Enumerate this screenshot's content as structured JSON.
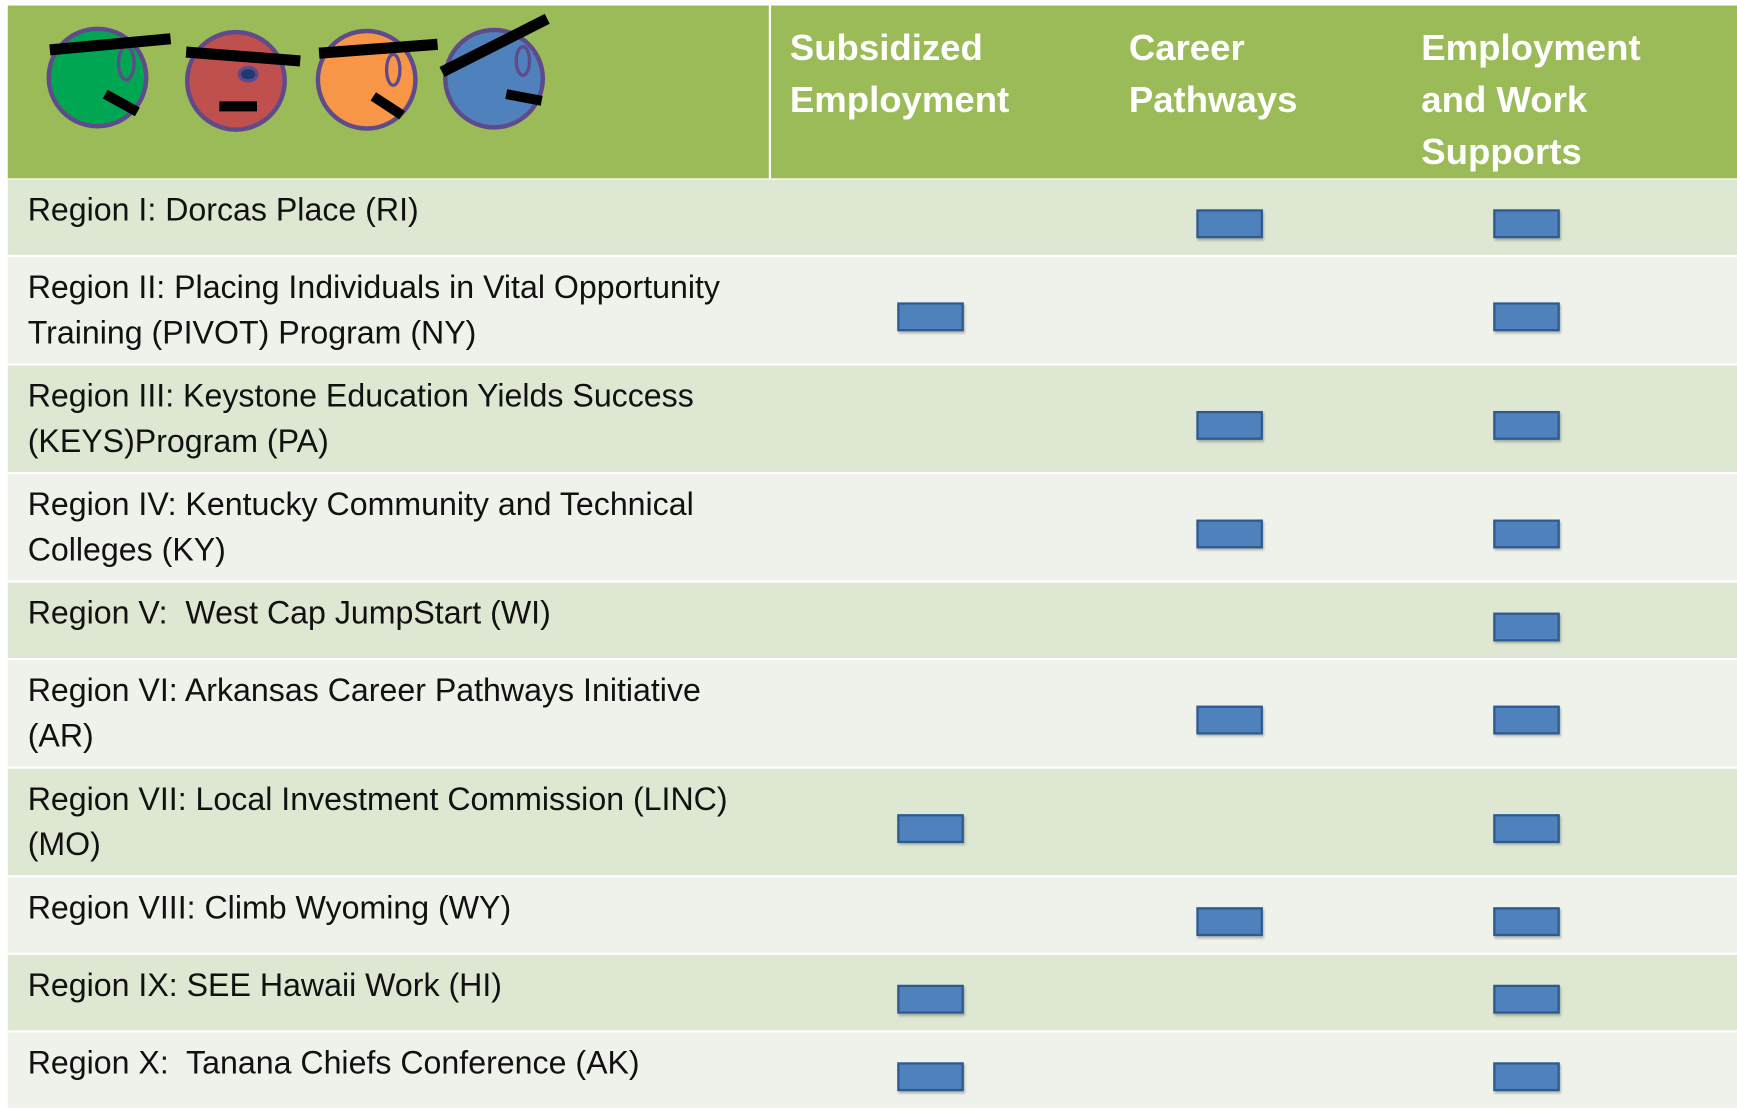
{
  "header": {
    "columns": [
      "Subsidized Employment",
      "Career Pathways",
      "Employment and Work Supports"
    ]
  },
  "rows": [
    {
      "label": "Region I: Dorcas Place (RI)",
      "marks": [
        false,
        true,
        true
      ]
    },
    {
      "label": "Region II: Placing Individuals in Vital Opportunity Training (PIVOT) Program (NY)",
      "marks": [
        true,
        false,
        true
      ]
    },
    {
      "label": "Region III: Keystone Education Yields Success (KEYS)Program (PA)",
      "marks": [
        false,
        true,
        true
      ]
    },
    {
      "label": "Region IV: Kentucky Community and Technical Colleges (KY)",
      "marks": [
        false,
        true,
        true
      ]
    },
    {
      "label": "Region V:  West Cap JumpStart (WI)",
      "marks": [
        false,
        false,
        true
      ]
    },
    {
      "label": "Region VI: Arkansas Career Pathways Initiative (AR)",
      "marks": [
        false,
        true,
        true
      ]
    },
    {
      "label": "Region VII: Local Investment Commission (LINC) (MO)",
      "marks": [
        true,
        false,
        true
      ]
    },
    {
      "label": "Region VIII: Climb Wyoming (WY)",
      "marks": [
        false,
        true,
        true
      ]
    },
    {
      "label": "Region IX: SEE Hawaii Work (HI)",
      "marks": [
        true,
        false,
        true
      ]
    },
    {
      "label": "Region X:  Tanana Chiefs Conference (AK)",
      "marks": [
        true,
        false,
        true
      ]
    }
  ]
}
